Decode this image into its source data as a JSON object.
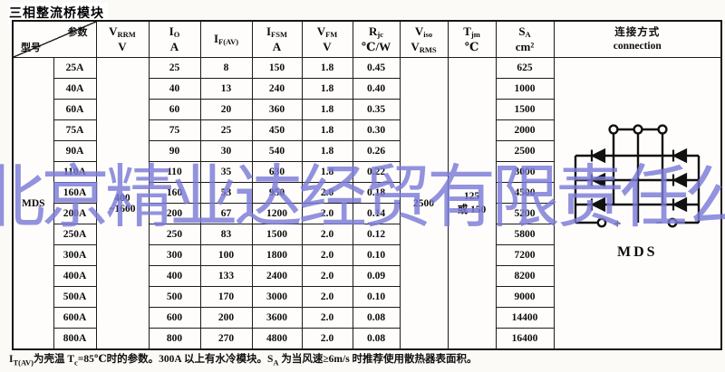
{
  "title": "三相整流桥模块",
  "watermark": "北京精业达经贸有限责任公司",
  "table": {
    "corner": {
      "param": "参数",
      "model": "型号"
    },
    "headers": {
      "vrrm": {
        "main": "V",
        "sub": "RRM",
        "unit": "V"
      },
      "io": {
        "main": "I",
        "sub": "O",
        "unit": "A"
      },
      "ifav": {
        "main": "I",
        "sub": "F(AV)",
        "unit": ""
      },
      "ifsm": {
        "main": "I",
        "sub": "FSM",
        "unit": "A"
      },
      "vfm": {
        "main": "V",
        "sub": "FM",
        "unit": "V"
      },
      "rjc": {
        "main": "R",
        "sub": "jc",
        "unit": "℃/W"
      },
      "viso": {
        "main": "V",
        "sub": "iso",
        "unit_main": "V",
        "unit_sub": "RMS"
      },
      "tjm": {
        "main": "T",
        "sub": "jm",
        "unit": "℃"
      },
      "sa": {
        "main": "S",
        "sub": "A",
        "unit": "cm²"
      },
      "connection": {
        "zh": "连接方式",
        "en": "connection"
      }
    },
    "merged": {
      "model": "MDS",
      "vrrm_line1": "400",
      "vrrm_line2": "~1600",
      "viso": "2500",
      "tjm_line1": "125",
      "tjm_line2": "或 150",
      "diagram_label": "MDS",
      "plus": "+",
      "minus": "−"
    },
    "rows": [
      {
        "rating": "25A",
        "io": "25",
        "ifav": "8",
        "ifsm": "150",
        "vfm": "1.8",
        "rjc": "0.45",
        "sa": "625"
      },
      {
        "rating": "40A",
        "io": "40",
        "ifav": "13",
        "ifsm": "240",
        "vfm": "1.8",
        "rjc": "0.40",
        "sa": "1000"
      },
      {
        "rating": "60A",
        "io": "60",
        "ifav": "20",
        "ifsm": "360",
        "vfm": "1.8",
        "rjc": "0.35",
        "sa": "1500"
      },
      {
        "rating": "75A",
        "io": "75",
        "ifav": "25",
        "ifsm": "450",
        "vfm": "1.8",
        "rjc": "0.30",
        "sa": "2000"
      },
      {
        "rating": "90A",
        "io": "90",
        "ifav": "30",
        "ifsm": "540",
        "vfm": "1.8",
        "rjc": "0.26",
        "sa": "2500"
      },
      {
        "rating": "110A",
        "io": "110",
        "ifav": "35",
        "ifsm": "630",
        "vfm": "1.8",
        "rjc": "0.22",
        "sa": "3000"
      },
      {
        "rating": "160A",
        "io": "160",
        "ifav": "53",
        "ifsm": "950",
        "vfm": "2.0",
        "rjc": "0.18",
        "sa": "4500"
      },
      {
        "rating": "200A",
        "io": "200",
        "ifav": "67",
        "ifsm": "1200",
        "vfm": "2.0",
        "rjc": "0.14",
        "sa": "5200"
      },
      {
        "rating": "250A",
        "io": "250",
        "ifav": "83",
        "ifsm": "1500",
        "vfm": "2.0",
        "rjc": "0.12",
        "sa": "5800"
      },
      {
        "rating": "300A",
        "io": "300",
        "ifav": "100",
        "ifsm": "1800",
        "vfm": "2.0",
        "rjc": "0.10",
        "sa": "7200"
      },
      {
        "rating": "400A",
        "io": "400",
        "ifav": "133",
        "ifsm": "2400",
        "vfm": "2.0",
        "rjc": "0.09",
        "sa": "8200"
      },
      {
        "rating": "500A",
        "io": "500",
        "ifav": "170",
        "ifsm": "3000",
        "vfm": "2.0",
        "rjc": "0.10",
        "sa": "9000"
      },
      {
        "rating": "600A",
        "io": "600",
        "ifav": "200",
        "ifsm": "3600",
        "vfm": "2.0",
        "rjc": "0.08",
        "sa": "14400"
      },
      {
        "rating": "800A",
        "io": "800",
        "ifav": "270",
        "ifsm": "4800",
        "vfm": "2.0",
        "rjc": "0.08",
        "sa": "16400"
      }
    ]
  },
  "footnote_segments": [
    {
      "t": "I"
    },
    {
      "t": "T(AV)",
      "sub": true
    },
    {
      "t": "为壳温 T"
    },
    {
      "t": "c",
      "sub": true
    },
    {
      "t": "=85℃时的参数。300A 以上有水冷模块。S"
    },
    {
      "t": "A",
      "sub": true
    },
    {
      "t": " 为当风速≥6m/s 时推荐使用散热器表面积。"
    }
  ],
  "colors": {
    "border": "#1c1c1c",
    "watermark": "#7b7bd8",
    "ink": "#0d0d0d"
  }
}
